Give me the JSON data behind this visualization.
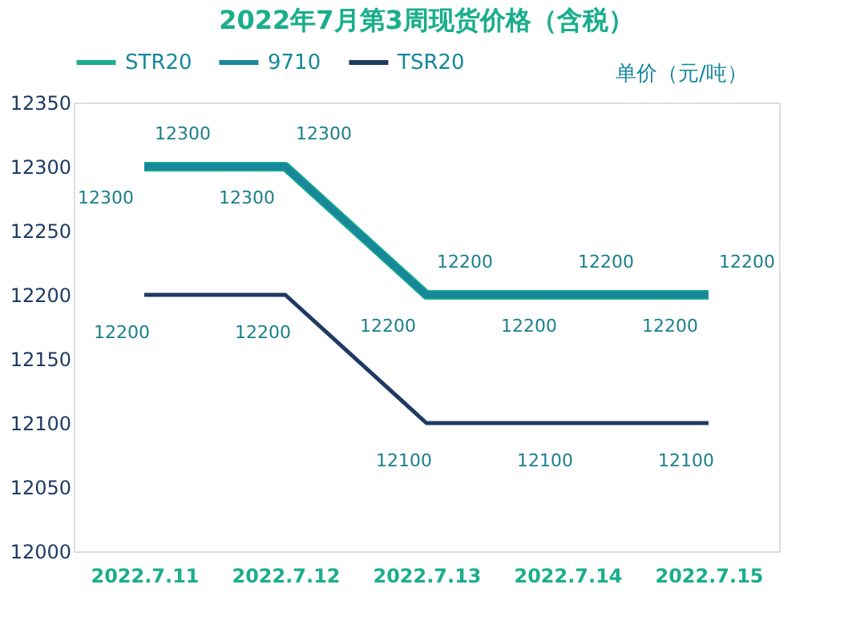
{
  "chart_data": {
    "type": "line",
    "title": "2022年7月第3周现货价格（含税）",
    "categories": [
      "2022.7.11",
      "2022.7.12",
      "2022.7.13",
      "2022.7.14",
      "2022.7.15"
    ],
    "series": [
      {
        "name": "STR20",
        "color": "#1aae8c",
        "values": [
          12300,
          12300,
          12200,
          12200,
          12200
        ]
      },
      {
        "name": "9710",
        "color": "#17879c",
        "values": [
          12300,
          12300,
          12200,
          12200,
          12200
        ]
      },
      {
        "name": "TSR20",
        "color": "#1e3a62",
        "values": [
          12200,
          12200,
          12100,
          12100,
          12100
        ]
      }
    ],
    "annotations": [
      "单价（元/吨）"
    ],
    "ylim": [
      12000,
      12350
    ],
    "yticks": [
      12000,
      12050,
      12100,
      12150,
      12200,
      12250,
      12300,
      12350
    ],
    "data_labels": true,
    "legend": "top",
    "grid": false,
    "marker": "none",
    "line_style": "solid"
  }
}
